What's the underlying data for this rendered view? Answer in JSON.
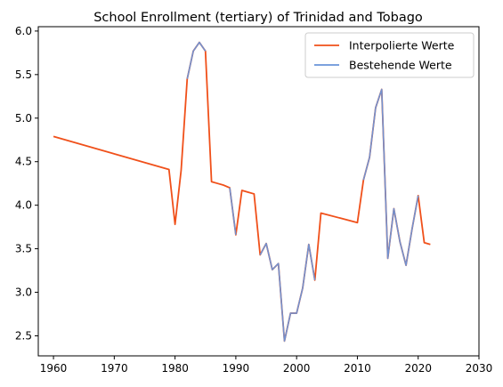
{
  "chart_data": {
    "type": "line",
    "title": "School Enrollment (tertiary) of Trinidad and Tobago",
    "xlabel": "",
    "ylabel": "",
    "xlim": [
      1957.5,
      2030
    ],
    "ylim": [
      2.27,
      6.05
    ],
    "xticks": [
      1960,
      1970,
      1980,
      1990,
      2000,
      2010,
      2020,
      2030
    ],
    "yticks": [
      2.5,
      3.0,
      3.5,
      4.0,
      4.5,
      5.0,
      5.5,
      6.0
    ],
    "xtick_labels": [
      "1960",
      "1970",
      "1980",
      "1990",
      "2000",
      "2010",
      "2020",
      "2030"
    ],
    "ytick_labels": [
      "2.5",
      "3.0",
      "3.5",
      "4.0",
      "4.5",
      "5.0",
      "5.5",
      "6.0"
    ],
    "grid": false,
    "legend_position": "top-right",
    "series": [
      {
        "name": "Interpolierte Werte",
        "color": "#f0501a",
        "x": [
          1960,
          1979,
          1980,
          1981,
          1982,
          1983,
          1984,
          1985,
          1986,
          1987,
          1988,
          1989,
          1990,
          1991,
          1992,
          1993,
          1994,
          1995,
          1996,
          1997,
          1998,
          1999,
          2000,
          2001,
          2002,
          2003,
          2004,
          2010,
          2011,
          2012,
          2013,
          2014,
          2015,
          2016,
          2017,
          2018,
          2019,
          2020,
          2021,
          2022
        ],
        "y": [
          4.79,
          4.41,
          3.78,
          4.4,
          5.45,
          5.77,
          5.87,
          5.77,
          4.27,
          4.25,
          4.23,
          4.2,
          3.66,
          4.17,
          4.15,
          4.13,
          3.43,
          3.56,
          3.26,
          3.33,
          2.44,
          2.76,
          2.76,
          3.05,
          3.55,
          3.14,
          3.91,
          3.8,
          4.29,
          4.55,
          5.12,
          5.33,
          3.39,
          3.96,
          3.58,
          3.31,
          3.73,
          4.11,
          3.57,
          3.55
        ]
      },
      {
        "name": "Bestehende Werte",
        "color": "#6a95d9",
        "x": [
          1982,
          1983,
          1984,
          1985,
          null,
          1989,
          1990,
          null,
          1994,
          1995,
          1996,
          1997,
          1998,
          1999,
          2000,
          2001,
          2002,
          2003,
          null,
          2011,
          2012,
          2013,
          2014,
          2015,
          2016,
          2017,
          2018,
          2019,
          2020
        ],
        "y": [
          5.45,
          5.77,
          5.87,
          5.77,
          null,
          4.2,
          3.66,
          null,
          3.43,
          3.56,
          3.26,
          3.33,
          2.44,
          2.76,
          2.76,
          3.05,
          3.55,
          3.14,
          null,
          4.29,
          4.55,
          5.12,
          5.33,
          3.39,
          3.96,
          3.58,
          3.31,
          3.73,
          4.11
        ]
      }
    ]
  }
}
